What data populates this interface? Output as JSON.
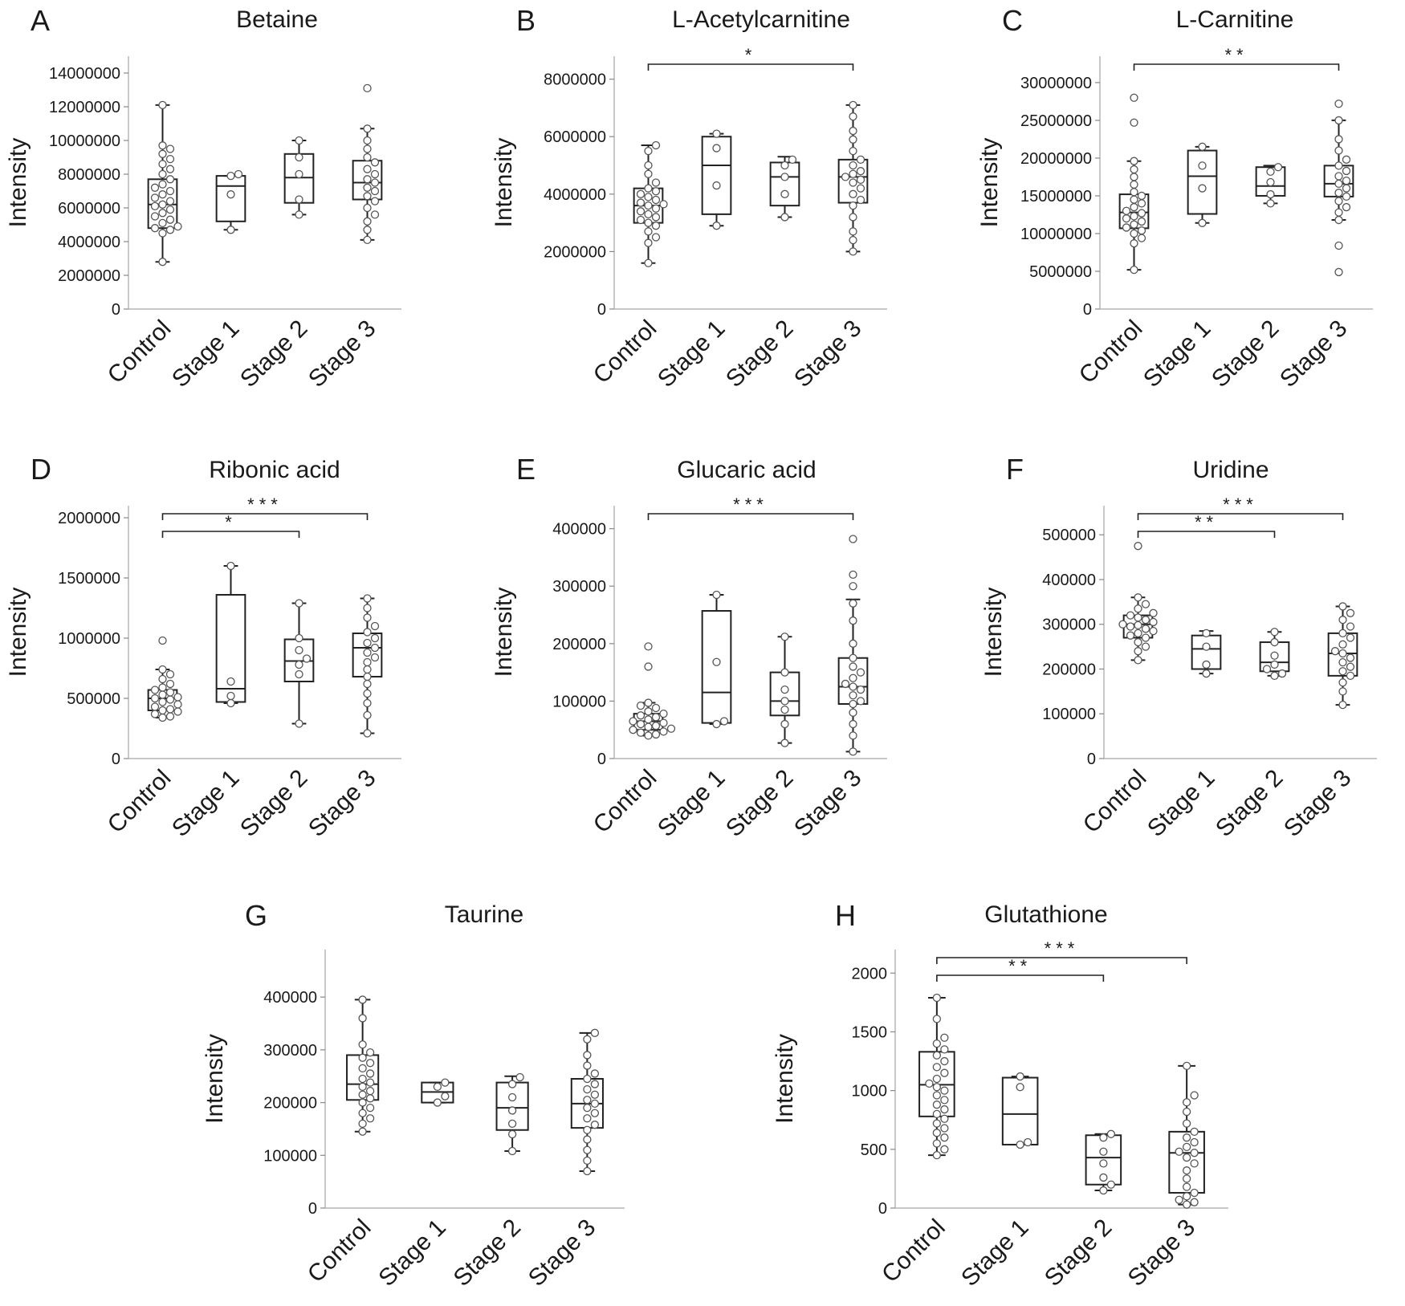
{
  "chart_data": [
    {
      "id": "A",
      "type": "box",
      "title": "Betaine",
      "ylabel": "Intensity",
      "categories": [
        "Control",
        "Stage 1",
        "Stage 2",
        "Stage 3"
      ],
      "ylim": [
        0,
        15000000
      ],
      "yticks": [
        0,
        2000000,
        4000000,
        6000000,
        8000000,
        10000000,
        12000000,
        14000000
      ],
      "ytick_labels": [
        "0",
        "2000000",
        "4000000",
        "6000000",
        "8000000",
        "10000000",
        "12000000",
        "14000000"
      ],
      "boxes": [
        {
          "min": 2800000,
          "q1": 4800000,
          "median": 6200000,
          "q3": 7700000,
          "max": 12100000,
          "points": [
            12100000,
            9700000,
            9500000,
            9200000,
            8900000,
            8600000,
            8300000,
            8000000,
            7700000,
            7400000,
            7200000,
            7000000,
            6800000,
            6600000,
            6400000,
            6200000,
            6100000,
            5900000,
            5700000,
            5500000,
            5300000,
            5100000,
            4900000,
            4800000,
            4700000,
            4500000,
            2800000
          ]
        },
        {
          "min": 4700000,
          "q1": 5200000,
          "median": 7300000,
          "q3": 7900000,
          "max": 7900000,
          "points": [
            8000000,
            7900000,
            6800000,
            4700000
          ]
        },
        {
          "min": 5600000,
          "q1": 6300000,
          "median": 7800000,
          "q3": 9200000,
          "max": 10000000,
          "points": [
            10000000,
            9000000,
            8000000,
            6500000,
            5600000
          ]
        },
        {
          "min": 4100000,
          "q1": 6500000,
          "median": 7500000,
          "q3": 8800000,
          "max": 10700000,
          "points": [
            13100000,
            10700000,
            10000000,
            9500000,
            9000000,
            8700000,
            8300000,
            8000000,
            7700000,
            7500000,
            7200000,
            7000000,
            6700000,
            6400000,
            6000000,
            5600000,
            5200000,
            4700000,
            4100000
          ]
        }
      ],
      "significance": []
    },
    {
      "id": "B",
      "type": "box",
      "title": "L-Acetylcarnitine",
      "ylabel": "Intensity",
      "categories": [
        "Control",
        "Stage 1",
        "Stage 2",
        "Stage 3"
      ],
      "ylim": [
        0,
        8800000
      ],
      "yticks": [
        0,
        2000000,
        4000000,
        6000000,
        8000000
      ],
      "ytick_labels": [
        "0",
        "2000000",
        "4000000",
        "6000000",
        "8000000"
      ],
      "boxes": [
        {
          "min": 1600000,
          "q1": 3000000,
          "median": 3600000,
          "q3": 4200000,
          "max": 5700000,
          "points": [
            5700000,
            5500000,
            5000000,
            4700000,
            4400000,
            4200000,
            4100000,
            4000000,
            3900000,
            3800000,
            3700000,
            3650000,
            3600000,
            3500000,
            3400000,
            3300000,
            3200000,
            3100000,
            3000000,
            2900000,
            2700000,
            2500000,
            2300000,
            1600000
          ]
        },
        {
          "min": 2900000,
          "q1": 3300000,
          "median": 5000000,
          "q3": 6000000,
          "max": 6100000,
          "points": [
            6100000,
            5600000,
            4300000,
            2900000
          ]
        },
        {
          "min": 3200000,
          "q1": 3600000,
          "median": 4600000,
          "q3": 5100000,
          "max": 5300000,
          "points": [
            5200000,
            5000000,
            4600000,
            4000000,
            3200000
          ]
        },
        {
          "min": 2000000,
          "q1": 3700000,
          "median": 4600000,
          "q3": 5200000,
          "max": 7100000,
          "points": [
            7100000,
            6700000,
            6200000,
            5900000,
            5500000,
            5200000,
            5000000,
            4800000,
            4700000,
            4600000,
            4500000,
            4400000,
            4200000,
            4000000,
            3800000,
            3600000,
            3200000,
            2700000,
            2400000,
            2000000
          ]
        }
      ],
      "significance": [
        {
          "from": 0,
          "to": 3,
          "label": "*"
        }
      ]
    },
    {
      "id": "C",
      "type": "box",
      "title": "L-Carnitine",
      "ylabel": "Intensity",
      "categories": [
        "Control",
        "Stage 1",
        "Stage 2",
        "Stage 3"
      ],
      "ylim": [
        0,
        33500000
      ],
      "yticks": [
        0,
        5000000,
        10000000,
        15000000,
        20000000,
        25000000,
        30000000
      ],
      "ytick_labels": [
        "0",
        "5000000",
        "10000000",
        "15000000",
        "20000000",
        "25000000",
        "30000000"
      ],
      "boxes": [
        {
          "min": 5200000,
          "q1": 10700000,
          "median": 12800000,
          "q3": 15200000,
          "max": 19600000,
          "points": [
            28000000,
            24700000,
            19600000,
            18500000,
            17500000,
            16500000,
            15500000,
            15000000,
            14500000,
            14000000,
            13500000,
            13000000,
            12700000,
            12300000,
            12000000,
            11600000,
            11200000,
            10800000,
            10400000,
            10000000,
            9400000,
            8700000,
            5200000
          ]
        },
        {
          "min": 11400000,
          "q1": 12600000,
          "median": 17600000,
          "q3": 21000000,
          "max": 21500000,
          "points": [
            21500000,
            19000000,
            16000000,
            11400000
          ]
        },
        {
          "min": 14000000,
          "q1": 15000000,
          "median": 16300000,
          "q3": 18800000,
          "max": 19000000,
          "points": [
            18800000,
            18200000,
            16800000,
            15200000,
            14000000
          ]
        },
        {
          "min": 11800000,
          "q1": 14900000,
          "median": 16600000,
          "q3": 19000000,
          "max": 25000000,
          "points": [
            27200000,
            25000000,
            22500000,
            21000000,
            19800000,
            19000000,
            18300000,
            17600000,
            17000000,
            16600000,
            16000000,
            15400000,
            14900000,
            14300000,
            13500000,
            12800000,
            11800000,
            8400000,
            4900000
          ]
        }
      ],
      "significance": [
        {
          "from": 0,
          "to": 3,
          "label": "**"
        }
      ]
    },
    {
      "id": "D",
      "type": "box",
      "title": "Ribonic acid",
      "ylabel": "Intensity",
      "categories": [
        "Control",
        "Stage 1",
        "Stage 2",
        "Stage 3"
      ],
      "ylim": [
        0,
        2100000
      ],
      "yticks": [
        0,
        500000,
        1000000,
        1500000,
        2000000
      ],
      "ytick_labels": [
        "0",
        "500000",
        "1000000",
        "1500000",
        "2000000"
      ],
      "boxes": [
        {
          "min": 340000,
          "q1": 400000,
          "median": 500000,
          "q3": 570000,
          "max": 740000,
          "points": [
            980000,
            740000,
            700000,
            660000,
            620000,
            590000,
            570000,
            550000,
            530000,
            510000,
            500000,
            490000,
            470000,
            450000,
            430000,
            410000,
            400000,
            390000,
            370000,
            350000,
            340000
          ]
        },
        {
          "min": 460000,
          "q1": 470000,
          "median": 580000,
          "q3": 1360000,
          "max": 1600000,
          "points": [
            1600000,
            640000,
            520000,
            460000
          ]
        },
        {
          "min": 290000,
          "q1": 640000,
          "median": 810000,
          "q3": 990000,
          "max": 1290000,
          "points": [
            1290000,
            1000000,
            900000,
            830000,
            780000,
            700000,
            290000
          ]
        },
        {
          "min": 210000,
          "q1": 680000,
          "median": 920000,
          "q3": 1040000,
          "max": 1330000,
          "points": [
            1330000,
            1250000,
            1170000,
            1100000,
            1050000,
            1000000,
            960000,
            920000,
            880000,
            840000,
            800000,
            740000,
            680000,
            620000,
            540000,
            460000,
            360000,
            210000
          ]
        }
      ],
      "significance": [
        {
          "from": 0,
          "to": 2,
          "label": "*"
        },
        {
          "from": 0,
          "to": 3,
          "label": "***"
        }
      ]
    },
    {
      "id": "E",
      "type": "box",
      "title": "Glucaric acid",
      "ylabel": "Intensity",
      "categories": [
        "Control",
        "Stage 1",
        "Stage 2",
        "Stage 3"
      ],
      "ylim": [
        0,
        440000
      ],
      "yticks": [
        0,
        100000,
        200000,
        300000,
        400000
      ],
      "ytick_labels": [
        "0",
        "100000",
        "200000",
        "300000",
        "400000"
      ],
      "boxes": [
        {
          "min": 40000,
          "q1": 50000,
          "median": 65000,
          "q3": 78000,
          "max": 97000,
          "points": [
            195000,
            160000,
            97000,
            92000,
            88000,
            82000,
            78000,
            75000,
            72000,
            68000,
            65000,
            62000,
            60000,
            57000,
            55000,
            52000,
            50000,
            47000,
            45000,
            42000,
            40000
          ]
        },
        {
          "min": 60000,
          "q1": 62000,
          "median": 115000,
          "q3": 257000,
          "max": 285000,
          "points": [
            285000,
            168000,
            65000,
            60000
          ]
        },
        {
          "min": 27000,
          "q1": 75000,
          "median": 100000,
          "q3": 150000,
          "max": 212000,
          "points": [
            212000,
            150000,
            120000,
            100000,
            85000,
            60000,
            27000
          ]
        },
        {
          "min": 12000,
          "q1": 95000,
          "median": 125000,
          "q3": 175000,
          "max": 277000,
          "points": [
            382000,
            320000,
            300000,
            270000,
            240000,
            200000,
            175000,
            160000,
            150000,
            140000,
            130000,
            125000,
            120000,
            110000,
            100000,
            95000,
            80000,
            60000,
            40000,
            12000
          ]
        }
      ],
      "significance": [
        {
          "from": 0,
          "to": 3,
          "label": "***"
        }
      ]
    },
    {
      "id": "F",
      "type": "box",
      "title": "Uridine",
      "ylabel": "Intensity",
      "categories": [
        "Control",
        "Stage 1",
        "Stage 2",
        "Stage 3"
      ],
      "ylim": [
        0,
        565000
      ],
      "yticks": [
        0,
        100000,
        200000,
        300000,
        400000,
        500000
      ],
      "ytick_labels": [
        "0",
        "100000",
        "200000",
        "300000",
        "400000",
        "500000"
      ],
      "boxes": [
        {
          "min": 220000,
          "q1": 270000,
          "median": 300000,
          "q3": 320000,
          "max": 360000,
          "points": [
            475000,
            360000,
            345000,
            335000,
            325000,
            320000,
            315000,
            310000,
            305000,
            300000,
            298000,
            295000,
            290000,
            285000,
            280000,
            275000,
            270000,
            260000,
            250000,
            240000,
            220000
          ]
        },
        {
          "min": 190000,
          "q1": 200000,
          "median": 245000,
          "q3": 275000,
          "max": 285000,
          "points": [
            280000,
            250000,
            210000,
            190000
          ]
        },
        {
          "min": 185000,
          "q1": 195000,
          "median": 215000,
          "q3": 260000,
          "max": 283000,
          "points": [
            283000,
            260000,
            230000,
            210000,
            200000,
            190000,
            185000
          ]
        },
        {
          "min": 120000,
          "q1": 185000,
          "median": 235000,
          "q3": 280000,
          "max": 340000,
          "points": [
            340000,
            325000,
            310000,
            295000,
            280000,
            270000,
            255000,
            240000,
            235000,
            225000,
            215000,
            205000,
            195000,
            185000,
            170000,
            150000,
            120000
          ]
        }
      ],
      "significance": [
        {
          "from": 0,
          "to": 2,
          "label": "**"
        },
        {
          "from": 0,
          "to": 3,
          "label": "***"
        }
      ]
    },
    {
      "id": "G",
      "type": "box",
      "title": "Taurine",
      "ylabel": "Intensity",
      "categories": [
        "Control",
        "Stage 1",
        "Stage 2",
        "Stage 3"
      ],
      "ylim": [
        0,
        490000
      ],
      "yticks": [
        0,
        100000,
        200000,
        300000,
        400000
      ],
      "ytick_labels": [
        "0",
        "100000",
        "200000",
        "300000",
        "400000"
      ],
      "boxes": [
        {
          "min": 145000,
          "q1": 205000,
          "median": 235000,
          "q3": 290000,
          "max": 395000,
          "points": [
            395000,
            360000,
            310000,
            295000,
            285000,
            275000,
            265000,
            255000,
            245000,
            238000,
            230000,
            222000,
            215000,
            208000,
            200000,
            190000,
            180000,
            170000,
            160000,
            145000
          ]
        },
        {
          "min": 200000,
          "q1": 200000,
          "median": 220000,
          "q3": 238000,
          "max": 238000,
          "points": [
            238000,
            230000,
            212000,
            200000
          ]
        },
        {
          "min": 108000,
          "q1": 148000,
          "median": 190000,
          "q3": 238000,
          "max": 250000,
          "points": [
            248000,
            235000,
            210000,
            185000,
            160000,
            140000,
            108000
          ]
        },
        {
          "min": 70000,
          "q1": 152000,
          "median": 198000,
          "q3": 245000,
          "max": 332000,
          "points": [
            332000,
            320000,
            290000,
            270000,
            255000,
            245000,
            235000,
            225000,
            215000,
            205000,
            198000,
            190000,
            180000,
            170000,
            158000,
            148000,
            130000,
            110000,
            90000,
            70000
          ]
        }
      ],
      "significance": []
    },
    {
      "id": "H",
      "type": "box",
      "title": "Glutathione",
      "ylabel": "Intensity",
      "categories": [
        "Control",
        "Stage 1",
        "Stage 2",
        "Stage 3"
      ],
      "ylim": [
        0,
        2200
      ],
      "yticks": [
        0,
        500,
        1000,
        1500,
        2000
      ],
      "ytick_labels": [
        "0",
        "500",
        "1000",
        "1500",
        "2000"
      ],
      "boxes": [
        {
          "min": 450,
          "q1": 780,
          "median": 1050,
          "q3": 1330,
          "max": 1790,
          "points": [
            1790,
            1610,
            1450,
            1400,
            1350,
            1300,
            1250,
            1200,
            1150,
            1100,
            1060,
            1030,
            1000,
            960,
            920,
            880,
            840,
            800,
            760,
            720,
            680,
            640,
            600,
            550,
            500,
            450
          ]
        },
        {
          "min": 540,
          "q1": 540,
          "median": 800,
          "q3": 1110,
          "max": 1120,
          "points": [
            1120,
            1030,
            560,
            540
          ]
        },
        {
          "min": 150,
          "q1": 200,
          "median": 430,
          "q3": 620,
          "max": 630,
          "points": [
            630,
            600,
            480,
            380,
            260,
            200,
            150
          ]
        },
        {
          "min": 30,
          "q1": 130,
          "median": 470,
          "q3": 650,
          "max": 1210,
          "points": [
            1210,
            960,
            900,
            820,
            720,
            650,
            600,
            560,
            520,
            480,
            470,
            430,
            380,
            320,
            250,
            180,
            130,
            100,
            70,
            50,
            30
          ]
        }
      ],
      "significance": [
        {
          "from": 0,
          "to": 2,
          "label": "**"
        },
        {
          "from": 0,
          "to": 3,
          "label": "***"
        }
      ]
    }
  ]
}
